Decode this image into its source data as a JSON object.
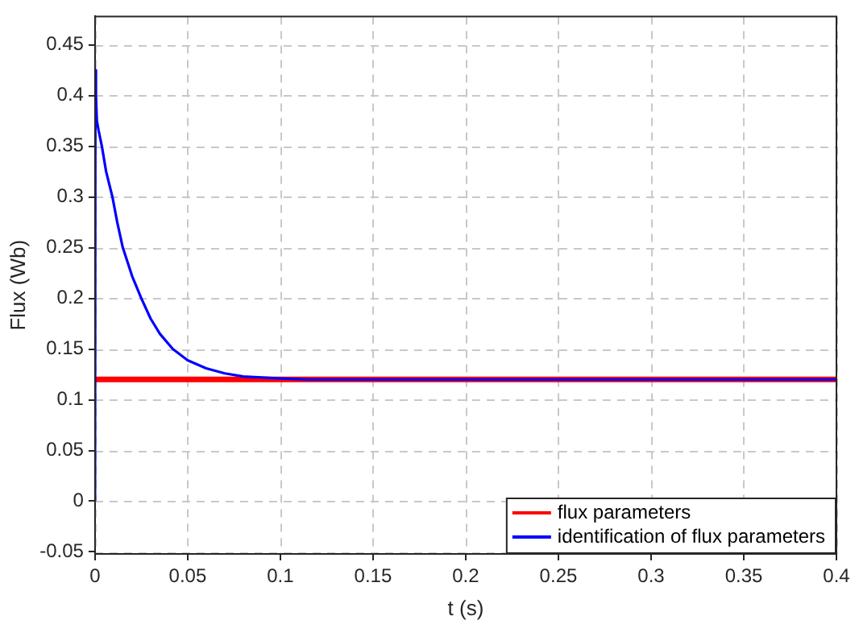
{
  "chart_data": {
    "type": "line",
    "xlabel": "t (s)",
    "ylabel": "Flux (Wb)",
    "xlim": [
      0,
      0.4
    ],
    "xticks": [
      0,
      0.05,
      0.1,
      0.15,
      0.2,
      0.25,
      0.3,
      0.35,
      0.4
    ],
    "ylim": [
      -0.052,
      0.478
    ],
    "yticks": [
      -0.05,
      0,
      0.05,
      0.1,
      0.15,
      0.2,
      0.25,
      0.3,
      0.35,
      0.4,
      0.45
    ],
    "grid": true,
    "legend": "bottom right",
    "marker": "none",
    "line_style": "solid",
    "series": [
      {
        "name": "flux parameters",
        "color": "#ff0000",
        "x": [
          0,
          0.4
        ],
        "values": [
          0.12,
          0.12
        ]
      },
      {
        "name": "identification of flux parameters",
        "color": "#0000ff",
        "x": [
          0,
          0.0002,
          0.0005,
          0.001,
          0.002,
          0.0037,
          0.006,
          0.0094,
          0.012,
          0.015,
          0.02,
          0.025,
          0.03,
          0.035,
          0.042,
          0.05,
          0.06,
          0.07,
          0.08,
          0.09,
          0.1,
          0.115,
          0.13,
          0.2,
          0.3,
          0.4
        ],
        "values": [
          0,
          0.425,
          0.4,
          0.375,
          0.365,
          0.35,
          0.325,
          0.3,
          0.275,
          0.25,
          0.222,
          0.2,
          0.18,
          0.165,
          0.15,
          0.139,
          0.131,
          0.126,
          0.123,
          0.122,
          0.121,
          0.12,
          0.12,
          0.12,
          0.12,
          0.12
        ]
      }
    ]
  }
}
